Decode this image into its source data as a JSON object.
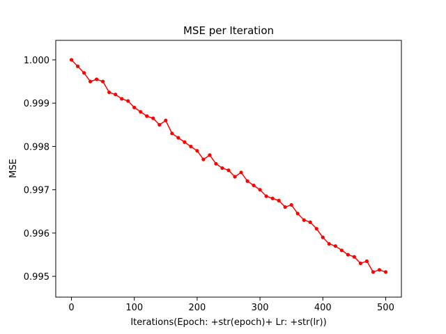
{
  "chart_data": {
    "type": "line",
    "title": "MSE per Iteration",
    "xlabel": "Iterations(Epoch: +str(epoch)+ Lr: +str(lr))",
    "ylabel": "MSE",
    "xlim": [
      -25,
      525
    ],
    "ylim": [
      0.99452,
      1.00045
    ],
    "x_ticks": [
      0,
      100,
      200,
      300,
      400,
      500
    ],
    "y_ticks": [
      0.995,
      0.996,
      0.997,
      0.998,
      0.999,
      1.0
    ],
    "x_tick_labels": [
      "0",
      "100",
      "200",
      "300",
      "400",
      "500"
    ],
    "y_tick_labels": [
      "0.995",
      "0.996",
      "0.997",
      "0.998",
      "0.999",
      "1.000"
    ],
    "grid": false,
    "legend": "none",
    "series": [
      {
        "color": "#ff0000",
        "marker": "circle",
        "x": [
          0,
          10,
          20,
          30,
          40,
          50,
          60,
          70,
          80,
          90,
          100,
          110,
          120,
          130,
          140,
          150,
          160,
          170,
          180,
          190,
          200,
          210,
          220,
          230,
          240,
          250,
          260,
          270,
          280,
          290,
          300,
          310,
          320,
          330,
          340,
          350,
          360,
          370,
          380,
          390,
          400,
          410,
          420,
          430,
          440,
          450,
          460,
          470,
          480,
          490,
          500
        ],
        "y": [
          1.0,
          0.99985,
          0.9997,
          0.9995,
          0.99955,
          0.9995,
          0.99925,
          0.9992,
          0.9991,
          0.99905,
          0.9989,
          0.9988,
          0.9987,
          0.99865,
          0.9985,
          0.9986,
          0.9983,
          0.9982,
          0.9981,
          0.998,
          0.9979,
          0.9977,
          0.9978,
          0.9976,
          0.9975,
          0.99745,
          0.9973,
          0.9974,
          0.9972,
          0.9971,
          0.997,
          0.99685,
          0.9968,
          0.99675,
          0.9966,
          0.99665,
          0.99645,
          0.9963,
          0.99625,
          0.9961,
          0.9959,
          0.99575,
          0.9957,
          0.9956,
          0.9955,
          0.99545,
          0.9953,
          0.99535,
          0.9951,
          0.99515,
          0.9951
        ]
      }
    ]
  }
}
